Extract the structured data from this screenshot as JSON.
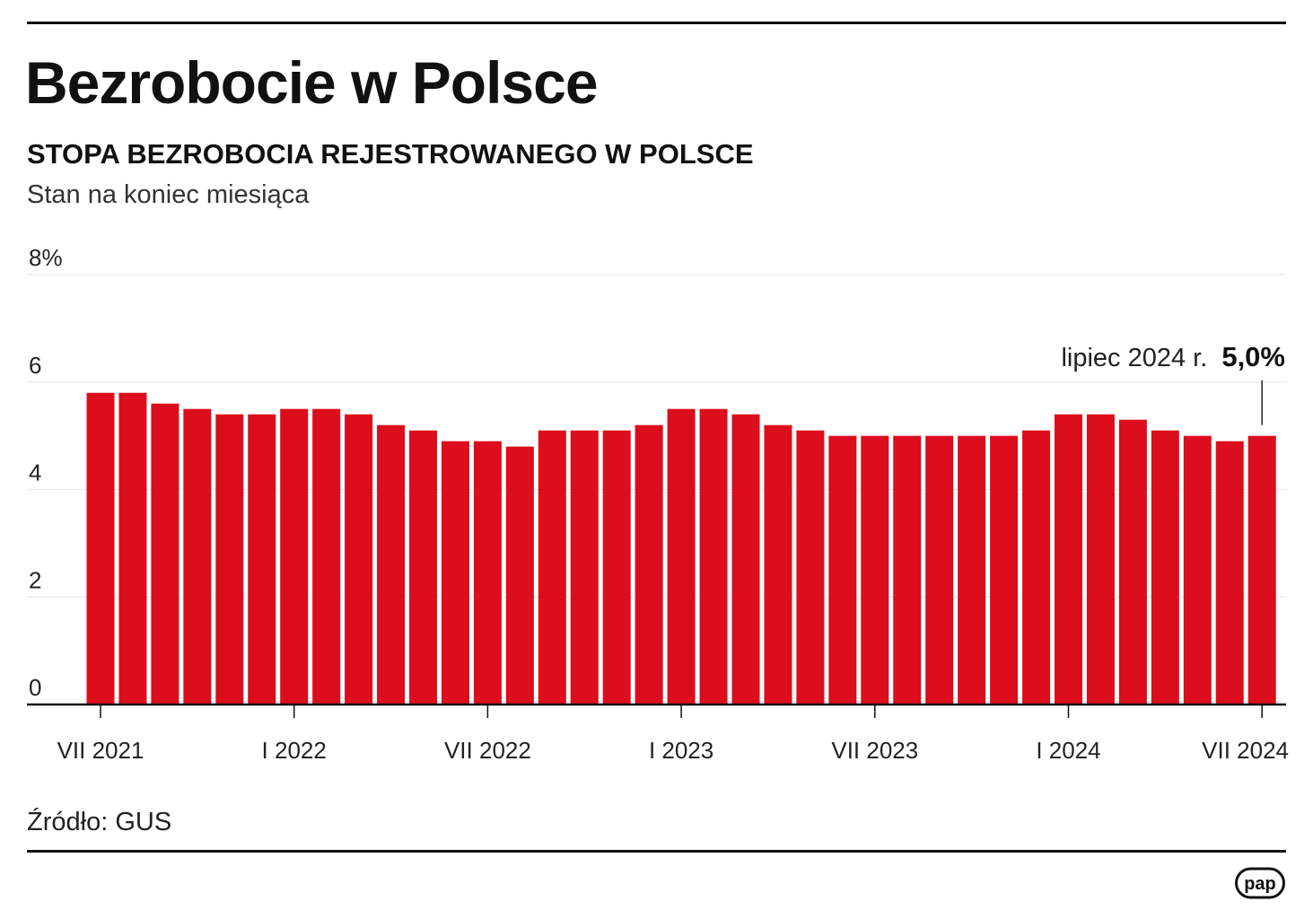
{
  "title": "Bezrobocie w Polsce",
  "subtitle": "STOPA BEZROBOCIA REJESTROWANEGO W POLSCE",
  "note": "Stan na koniec miesiąca",
  "source": "Źródło: GUS",
  "logo_text": "pap",
  "colors": {
    "bar": "#dc0d1c",
    "text": "#111111",
    "grid": "#e6e6e6"
  },
  "annotation": {
    "label": "lipiec 2024 r.",
    "value": "5,0%"
  },
  "chart_data": {
    "type": "bar",
    "ylim": [
      0,
      8
    ],
    "y_ticks": [
      {
        "value": 0,
        "label": "0"
      },
      {
        "value": 2,
        "label": "2"
      },
      {
        "value": 4,
        "label": "4"
      },
      {
        "value": 6,
        "label": "6"
      },
      {
        "value": 8,
        "label": "8%"
      }
    ],
    "x_tick_labels": [
      {
        "index": 0,
        "label": "VII 2021"
      },
      {
        "index": 6,
        "label": "I 2022"
      },
      {
        "index": 12,
        "label": "VII 2022"
      },
      {
        "index": 18,
        "label": "I 2023"
      },
      {
        "index": 24,
        "label": "VII 2023"
      },
      {
        "index": 30,
        "label": "I 2024"
      },
      {
        "index": 36,
        "label": "VII 2024"
      }
    ],
    "grid": true,
    "values": [
      5.8,
      5.8,
      5.6,
      5.5,
      5.4,
      5.4,
      5.5,
      5.5,
      5.4,
      5.2,
      5.1,
      4.9,
      4.9,
      4.8,
      5.1,
      5.1,
      5.1,
      5.2,
      5.5,
      5.5,
      5.4,
      5.2,
      5.1,
      5.0,
      5.0,
      5.0,
      5.0,
      5.0,
      5.0,
      5.1,
      5.4,
      5.4,
      5.3,
      5.1,
      5.0,
      4.9,
      5.0
    ]
  }
}
